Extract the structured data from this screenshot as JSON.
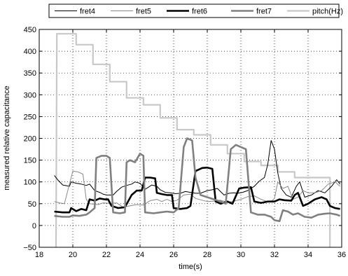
{
  "chart_data": {
    "type": "line",
    "xlabel": "time(s)",
    "ylabel": "measured relative capacitance",
    "xlim": [
      18,
      36
    ],
    "ylim": [
      -50,
      450
    ],
    "xticks": [
      18,
      20,
      22,
      24,
      26,
      28,
      30,
      32,
      34,
      36
    ],
    "yticks": [
      -50,
      0,
      50,
      100,
      150,
      200,
      250,
      300,
      350,
      400,
      450
    ],
    "xtick_labels": [
      "18",
      "20",
      "22",
      "24",
      "26",
      "28",
      "30",
      "32",
      "34",
      "36"
    ],
    "ytick_labels": [
      "−50",
      "0",
      "50",
      "100",
      "150",
      "200",
      "250",
      "300",
      "350",
      "400",
      "450"
    ],
    "grid": true,
    "legend_position": "top (outside plot)",
    "series": [
      {
        "name": "fret4",
        "color": "#000000",
        "style": "thin",
        "points": [
          [
            18.9,
            115
          ],
          [
            19.1,
            105
          ],
          [
            19.4,
            93
          ],
          [
            19.8,
            90
          ],
          [
            19.9,
            100
          ],
          [
            20.2,
            97
          ],
          [
            20.5,
            95
          ],
          [
            20.8,
            92
          ],
          [
            21.0,
            95
          ],
          [
            21.3,
            80
          ],
          [
            21.6,
            76
          ],
          [
            21.8,
            72
          ],
          [
            22.0,
            70
          ],
          [
            22.4,
            70
          ],
          [
            22.6,
            78
          ],
          [
            22.9,
            88
          ],
          [
            23.2,
            92
          ],
          [
            23.5,
            95
          ],
          [
            23.7,
            100
          ],
          [
            24.0,
            97
          ],
          [
            24.3,
            83
          ],
          [
            24.5,
            88
          ],
          [
            24.7,
            93
          ],
          [
            25.0,
            90
          ],
          [
            25.2,
            82
          ],
          [
            25.5,
            76
          ],
          [
            25.8,
            75
          ],
          [
            26.1,
            73
          ],
          [
            26.4,
            74
          ],
          [
            26.7,
            78
          ],
          [
            27.0,
            76
          ],
          [
            27.3,
            74
          ],
          [
            27.6,
            74
          ],
          [
            28.0,
            80
          ],
          [
            28.3,
            82
          ],
          [
            28.6,
            85
          ],
          [
            29.0,
            70
          ],
          [
            29.3,
            74
          ],
          [
            29.6,
            75
          ],
          [
            29.8,
            74
          ],
          [
            30.1,
            76
          ],
          [
            30.4,
            80
          ],
          [
            30.8,
            90
          ],
          [
            31.1,
            102
          ],
          [
            31.4,
            110
          ],
          [
            31.6,
            140
          ],
          [
            31.8,
            195
          ],
          [
            32.0,
            175
          ],
          [
            32.2,
            120
          ],
          [
            32.4,
            85
          ],
          [
            32.7,
            70
          ],
          [
            33.0,
            65
          ],
          [
            33.3,
            90
          ],
          [
            33.5,
            100
          ],
          [
            33.8,
            65
          ],
          [
            34.2,
            70
          ],
          [
            34.6,
            80
          ],
          [
            35.0,
            75
          ],
          [
            35.4,
            90
          ],
          [
            35.7,
            105
          ],
          [
            35.9,
            95
          ]
        ]
      },
      {
        "name": "fret5",
        "color": "#888888",
        "style": "thin",
        "points": [
          [
            18.9,
            55
          ],
          [
            19.2,
            52
          ],
          [
            19.5,
            50
          ],
          [
            19.8,
            95
          ],
          [
            20.0,
            125
          ],
          [
            20.3,
            123
          ],
          [
            20.6,
            118
          ],
          [
            20.8,
            60
          ],
          [
            21.0,
            50
          ],
          [
            21.5,
            48
          ],
          [
            21.8,
            52
          ],
          [
            22.2,
            51
          ],
          [
            22.6,
            52
          ],
          [
            23.0,
            42
          ],
          [
            23.4,
            45
          ],
          [
            23.8,
            48
          ],
          [
            24.2,
            47
          ],
          [
            24.6,
            57
          ],
          [
            25.0,
            60
          ],
          [
            25.3,
            55
          ],
          [
            25.6,
            60
          ],
          [
            25.9,
            55
          ],
          [
            26.2,
            58
          ],
          [
            26.6,
            70
          ],
          [
            27.0,
            72
          ],
          [
            27.3,
            62
          ],
          [
            27.7,
            58
          ],
          [
            28.0,
            55
          ],
          [
            28.4,
            56
          ],
          [
            28.8,
            58
          ],
          [
            29.2,
            53
          ],
          [
            29.6,
            56
          ],
          [
            30.0,
            60
          ],
          [
            30.4,
            66
          ],
          [
            30.8,
            68
          ],
          [
            31.2,
            60
          ],
          [
            31.5,
            56
          ],
          [
            31.8,
            55
          ],
          [
            32.0,
            62
          ],
          [
            32.2,
            100
          ],
          [
            32.5,
            85
          ],
          [
            32.8,
            90
          ],
          [
            33.1,
            60
          ],
          [
            33.4,
            65
          ],
          [
            33.7,
            80
          ],
          [
            34.0,
            75
          ],
          [
            34.4,
            75
          ],
          [
            34.8,
            80
          ],
          [
            35.2,
            95
          ],
          [
            35.6,
            100
          ],
          [
            35.9,
            90
          ]
        ]
      },
      {
        "name": "fret6",
        "color": "#000000",
        "style": "thick",
        "points": [
          [
            18.9,
            32
          ],
          [
            19.4,
            30
          ],
          [
            19.8,
            30
          ],
          [
            19.9,
            40
          ],
          [
            20.2,
            33
          ],
          [
            20.5,
            38
          ],
          [
            20.8,
            35
          ],
          [
            21.0,
            60
          ],
          [
            21.3,
            57
          ],
          [
            21.6,
            62
          ],
          [
            21.9,
            60
          ],
          [
            22.1,
            60
          ],
          [
            22.3,
            45
          ],
          [
            22.7,
            40
          ],
          [
            23.1,
            42
          ],
          [
            23.5,
            70
          ],
          [
            23.8,
            80
          ],
          [
            24.1,
            80
          ],
          [
            24.3,
            110
          ],
          [
            24.6,
            110
          ],
          [
            24.9,
            108
          ],
          [
            25.0,
            75
          ],
          [
            25.3,
            72
          ],
          [
            25.6,
            70
          ],
          [
            25.9,
            70
          ],
          [
            26.0,
            40
          ],
          [
            26.4,
            38
          ],
          [
            26.8,
            40
          ],
          [
            27.0,
            45
          ],
          [
            27.3,
            125
          ],
          [
            27.7,
            132
          ],
          [
            28.0,
            133
          ],
          [
            28.3,
            130
          ],
          [
            28.5,
            55
          ],
          [
            28.8,
            50
          ],
          [
            29.2,
            55
          ],
          [
            29.5,
            50
          ],
          [
            29.9,
            85
          ],
          [
            30.2,
            87
          ],
          [
            30.6,
            88
          ],
          [
            30.8,
            55
          ],
          [
            31.2,
            52
          ],
          [
            31.6,
            55
          ],
          [
            32.0,
            55
          ],
          [
            32.3,
            60
          ],
          [
            32.6,
            58
          ],
          [
            33.0,
            57
          ],
          [
            33.2,
            70
          ],
          [
            33.4,
            75
          ],
          [
            33.7,
            45
          ],
          [
            34.0,
            50
          ],
          [
            34.4,
            60
          ],
          [
            34.8,
            65
          ],
          [
            35.1,
            60
          ],
          [
            35.3,
            45
          ],
          [
            35.6,
            40
          ],
          [
            35.9,
            38
          ]
        ]
      },
      {
        "name": "fret7",
        "color": "#808080",
        "style": "thick",
        "points": [
          [
            18.9,
            22
          ],
          [
            19.4,
            20
          ],
          [
            19.8,
            20
          ],
          [
            20.0,
            23
          ],
          [
            20.4,
            22
          ],
          [
            20.8,
            25
          ],
          [
            21.0,
            30
          ],
          [
            21.3,
            40
          ],
          [
            21.4,
            155
          ],
          [
            21.7,
            160
          ],
          [
            22.0,
            160
          ],
          [
            22.2,
            155
          ],
          [
            22.4,
            30
          ],
          [
            22.8,
            28
          ],
          [
            23.1,
            30
          ],
          [
            23.2,
            145
          ],
          [
            23.4,
            150
          ],
          [
            23.7,
            145
          ],
          [
            24.0,
            165
          ],
          [
            24.2,
            160
          ],
          [
            24.3,
            30
          ],
          [
            24.8,
            28
          ],
          [
            25.2,
            30
          ],
          [
            25.6,
            32
          ],
          [
            26.0,
            30
          ],
          [
            26.3,
            40
          ],
          [
            26.6,
            180
          ],
          [
            26.8,
            200
          ],
          [
            27.1,
            195
          ],
          [
            27.3,
            110
          ],
          [
            27.6,
            70
          ],
          [
            28.0,
            65
          ],
          [
            28.4,
            60
          ],
          [
            28.8,
            55
          ],
          [
            29.1,
            50
          ],
          [
            29.4,
            175
          ],
          [
            29.7,
            185
          ],
          [
            30.0,
            180
          ],
          [
            30.3,
            175
          ],
          [
            30.6,
            30
          ],
          [
            31.0,
            25
          ],
          [
            31.4,
            25
          ],
          [
            31.8,
            20
          ],
          [
            32.0,
            12
          ],
          [
            32.3,
            10
          ],
          [
            32.5,
            35
          ],
          [
            32.8,
            32
          ],
          [
            33.1,
            25
          ],
          [
            33.4,
            28
          ],
          [
            33.8,
            20
          ],
          [
            34.2,
            18
          ],
          [
            34.6,
            25
          ],
          [
            35.0,
            27
          ],
          [
            35.3,
            28
          ],
          [
            35.7,
            25
          ],
          [
            35.9,
            22
          ]
        ]
      },
      {
        "name": "pitch(Hz)",
        "color": "#c8c8c8",
        "style": "step",
        "points": [
          [
            19.0,
            -50
          ],
          [
            19.05,
            440
          ],
          [
            20.2,
            440
          ],
          [
            20.2,
            415
          ],
          [
            21.2,
            415
          ],
          [
            21.2,
            370
          ],
          [
            22.2,
            370
          ],
          [
            22.2,
            330
          ],
          [
            23.2,
            330
          ],
          [
            23.2,
            293
          ],
          [
            24.2,
            293
          ],
          [
            24.2,
            277
          ],
          [
            25.2,
            277
          ],
          [
            25.2,
            247
          ],
          [
            26.2,
            247
          ],
          [
            26.2,
            220
          ],
          [
            27.2,
            220
          ],
          [
            27.2,
            208
          ],
          [
            28.2,
            208
          ],
          [
            28.2,
            185
          ],
          [
            29.2,
            185
          ],
          [
            29.2,
            165
          ],
          [
            30.2,
            165
          ],
          [
            30.2,
            147
          ],
          [
            31.2,
            147
          ],
          [
            31.2,
            138
          ],
          [
            32.2,
            138
          ],
          [
            32.2,
            123
          ],
          [
            33.2,
            123
          ],
          [
            33.2,
            110
          ],
          [
            34.2,
            110
          ],
          [
            34.2,
            110
          ],
          [
            35.3,
            110
          ],
          [
            35.3,
            -50
          ]
        ]
      }
    ]
  }
}
